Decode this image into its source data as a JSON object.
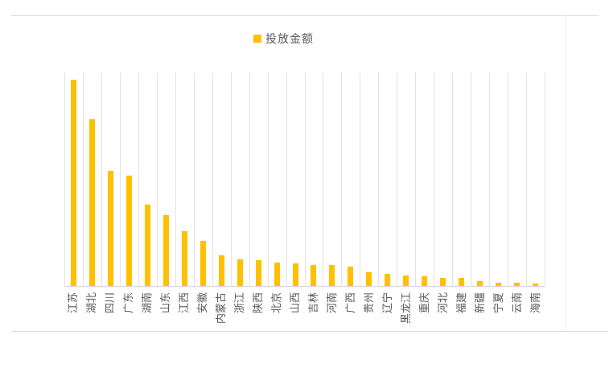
{
  "chart_data": {
    "type": "bar",
    "title": "",
    "legend": [
      "投放金额"
    ],
    "legend_position": "top-center",
    "categories": [
      "江苏",
      "湖北",
      "四川",
      "广东",
      "湖南",
      "山东",
      "江西",
      "安徽",
      "内蒙古",
      "浙江",
      "陕西",
      "北京",
      "山西",
      "吉林",
      "河南",
      "广西",
      "贵州",
      "辽宁",
      "黑龙江",
      "重庆",
      "河北",
      "福建",
      "新疆",
      "宁夏",
      "云南",
      "海南"
    ],
    "series": [
      {
        "name": "投放金额",
        "values": [
          100,
          81,
          56,
          53.5,
          39.5,
          34.5,
          26.5,
          22,
          15,
          13,
          12.5,
          11.5,
          11,
          10,
          10,
          9.5,
          6.5,
          6,
          5,
          4.5,
          4,
          4,
          2.5,
          1.5,
          1.5,
          1
        ]
      }
    ],
    "units": "relative bar height, tallest bar (江苏) = 100; y-axis has no visible tick labels in source",
    "xlabel": "",
    "ylabel": "",
    "ylim": [
      0,
      104
    ],
    "grid": "vertical category-boundary gridlines only, no horizontal gridlines",
    "x_tick_label_rotation": -90,
    "colors": {
      "bar": "#FFC000",
      "gridline": "#E2E2E2",
      "axis_line": "#D4D4D4",
      "label_text": "#595959",
      "divider_line": "#DCDCDC",
      "background": "#FFFFFF"
    }
  }
}
